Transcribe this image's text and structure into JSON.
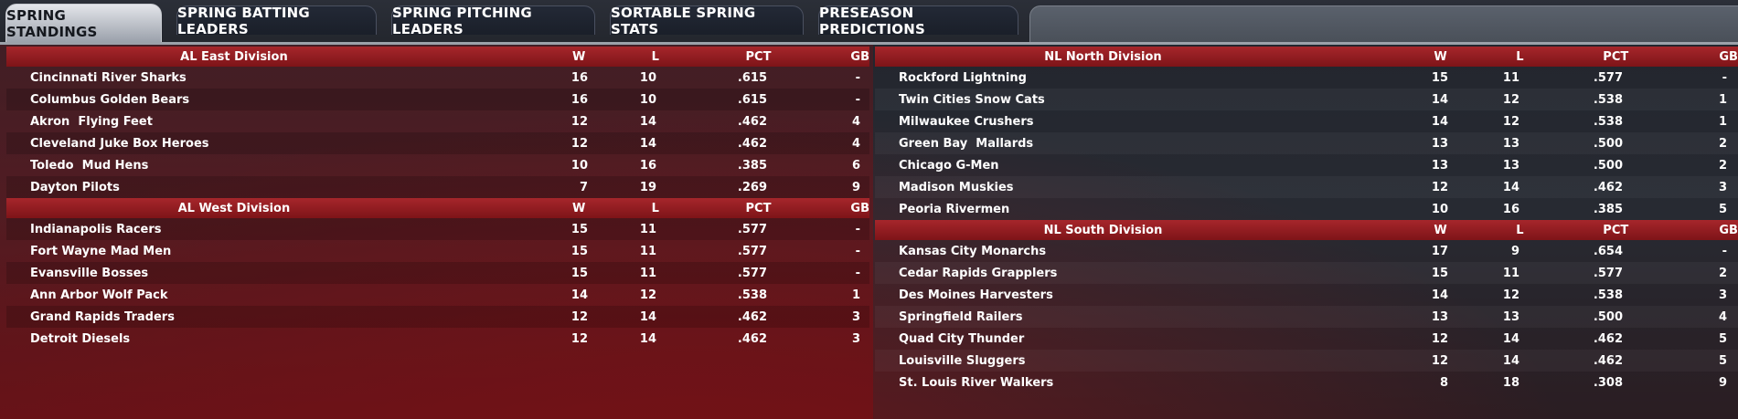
{
  "tabs": [
    {
      "label": "SPRING STANDINGS",
      "active": true
    },
    {
      "label": "SPRING BATTING LEADERS",
      "active": false
    },
    {
      "label": "SPRING PITCHING LEADERS",
      "active": false
    },
    {
      "label": "SORTABLE SPRING STATS",
      "active": false
    },
    {
      "label": "PRESEASON PREDICTIONS",
      "active": false
    }
  ],
  "columns": {
    "w": "W",
    "l": "L",
    "pct": "PCT",
    "gb": "GB"
  },
  "divisions": {
    "al_east": {
      "name": "AL East Division",
      "teams": [
        {
          "name": "Cincinnati River Sharks",
          "w": "16",
          "l": "10",
          "pct": ".615",
          "gb": "-"
        },
        {
          "name": "Columbus Golden Bears",
          "w": "16",
          "l": "10",
          "pct": ".615",
          "gb": "-"
        },
        {
          "name": "Akron  Flying Feet",
          "w": "12",
          "l": "14",
          "pct": ".462",
          "gb": "4"
        },
        {
          "name": "Cleveland Juke Box Heroes",
          "w": "12",
          "l": "14",
          "pct": ".462",
          "gb": "4"
        },
        {
          "name": "Toledo  Mud Hens",
          "w": "10",
          "l": "16",
          "pct": ".385",
          "gb": "6"
        },
        {
          "name": "Dayton Pilots",
          "w": "7",
          "l": "19",
          "pct": ".269",
          "gb": "9"
        }
      ]
    },
    "al_west": {
      "name": "AL West Division",
      "teams": [
        {
          "name": "Indianapolis Racers",
          "w": "15",
          "l": "11",
          "pct": ".577",
          "gb": "-"
        },
        {
          "name": "Fort Wayne Mad Men",
          "w": "15",
          "l": "11",
          "pct": ".577",
          "gb": "-"
        },
        {
          "name": "Evansville Bosses",
          "w": "15",
          "l": "11",
          "pct": ".577",
          "gb": "-"
        },
        {
          "name": "Ann Arbor Wolf Pack",
          "w": "14",
          "l": "12",
          "pct": ".538",
          "gb": "1"
        },
        {
          "name": "Grand Rapids Traders",
          "w": "12",
          "l": "14",
          "pct": ".462",
          "gb": "3"
        },
        {
          "name": "Detroit Diesels",
          "w": "12",
          "l": "14",
          "pct": ".462",
          "gb": "3"
        }
      ]
    },
    "nl_north": {
      "name": "NL North Division",
      "teams": [
        {
          "name": "Rockford Lightning",
          "w": "15",
          "l": "11",
          "pct": ".577",
          "gb": "-"
        },
        {
          "name": "Twin Cities Snow Cats",
          "w": "14",
          "l": "12",
          "pct": ".538",
          "gb": "1"
        },
        {
          "name": "Milwaukee Crushers",
          "w": "14",
          "l": "12",
          "pct": ".538",
          "gb": "1"
        },
        {
          "name": "Green Bay  Mallards",
          "w": "13",
          "l": "13",
          "pct": ".500",
          "gb": "2"
        },
        {
          "name": "Chicago G-Men",
          "w": "13",
          "l": "13",
          "pct": ".500",
          "gb": "2"
        },
        {
          "name": "Madison Muskies",
          "w": "12",
          "l": "14",
          "pct": ".462",
          "gb": "3"
        },
        {
          "name": "Peoria Rivermen",
          "w": "10",
          "l": "16",
          "pct": ".385",
          "gb": "5"
        }
      ]
    },
    "nl_south": {
      "name": "NL South Division",
      "teams": [
        {
          "name": "Kansas City Monarchs",
          "w": "17",
          "l": "9",
          "pct": ".654",
          "gb": "-"
        },
        {
          "name": "Cedar Rapids Grapplers",
          "w": "15",
          "l": "11",
          "pct": ".577",
          "gb": "2"
        },
        {
          "name": "Des Moines Harvesters",
          "w": "14",
          "l": "12",
          "pct": ".538",
          "gb": "3"
        },
        {
          "name": "Springfield Railers",
          "w": "13",
          "l": "13",
          "pct": ".500",
          "gb": "4"
        },
        {
          "name": "Quad City Thunder",
          "w": "12",
          "l": "14",
          "pct": ".462",
          "gb": "5"
        },
        {
          "name": "Louisville Sluggers",
          "w": "12",
          "l": "14",
          "pct": ".462",
          "gb": "5"
        },
        {
          "name": "St. Louis River Walkers",
          "w": "8",
          "l": "18",
          "pct": ".308",
          "gb": "9"
        }
      ]
    }
  },
  "colors": {
    "header_red": "#a6262b",
    "active_tab": "#e3e5ea",
    "inactive_tab": "#1f2430"
  }
}
